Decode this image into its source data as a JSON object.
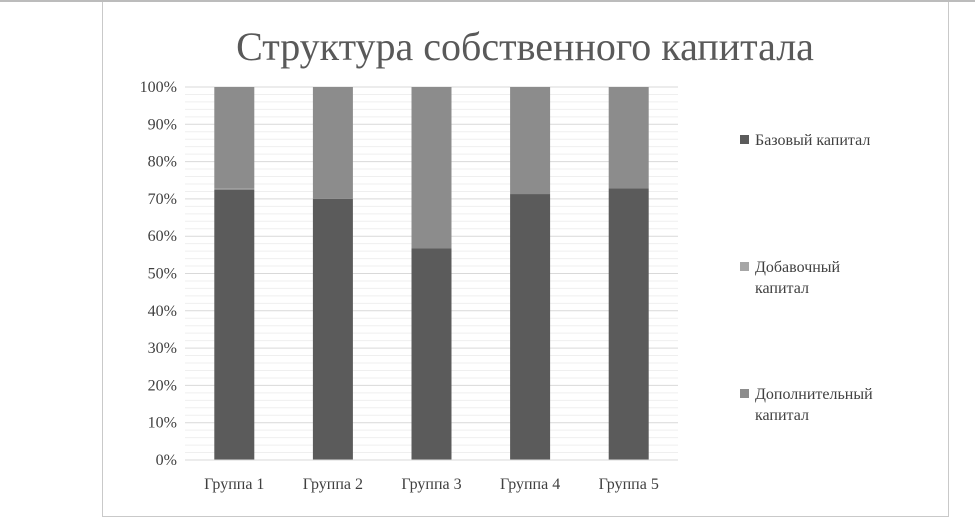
{
  "chart_data": {
    "type": "bar",
    "stacked": true,
    "percent": true,
    "title": "Структура собственного капитала",
    "xlabel": "",
    "ylabel": "",
    "ylim": [
      0,
      100
    ],
    "yticks": [
      "0%",
      "10%",
      "20%",
      "30%",
      "40%",
      "50%",
      "60%",
      "70%",
      "80%",
      "90%",
      "100%"
    ],
    "categories": [
      "Группа 1",
      "Группа 2",
      "Группа 3",
      "Группа 4",
      "Группа 5"
    ],
    "series": [
      {
        "name": "Базовый капитал",
        "color": "#5b5b5b",
        "values": [
          72.5,
          70,
          56.7,
          71.3,
          72.8
        ]
      },
      {
        "name": "Добавочный капитал",
        "color": "#a6a6a6",
        "values": [
          0.3,
          0,
          0,
          0,
          0
        ]
      },
      {
        "name": "Дополнительный капитал",
        "color": "#8c8c8c",
        "values": [
          27.2,
          30,
          43.3,
          28.7,
          27.2
        ]
      }
    ],
    "grid": true,
    "legend": "right"
  }
}
